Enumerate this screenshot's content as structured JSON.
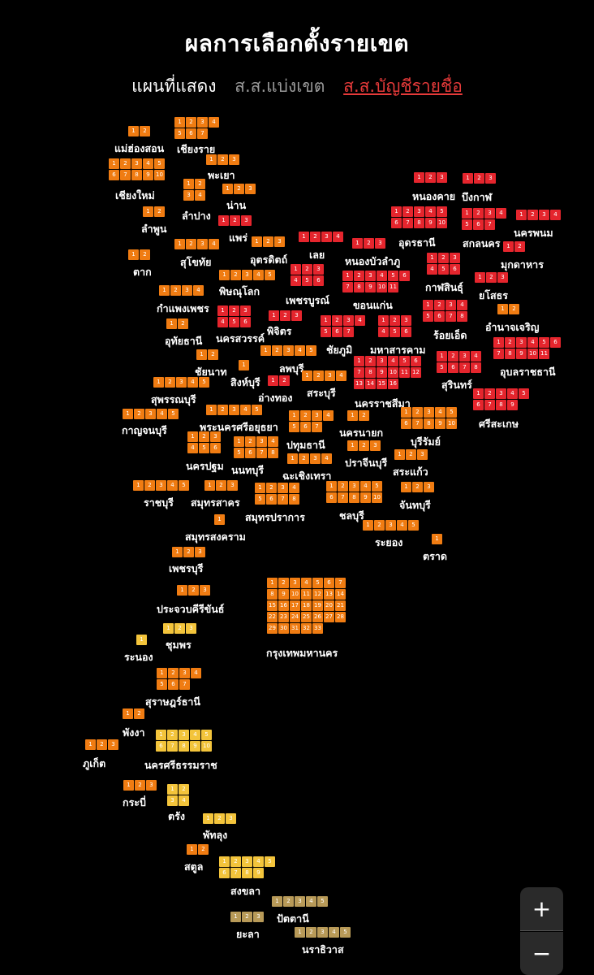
{
  "title": "ผลการเลือกตั้งรายเขต",
  "legend": {
    "show": "แผนที่แสดง",
    "district": "ส.ส.แบ่งเขต",
    "party_list": "ส.ส.บัญชีรายชื่อ"
  },
  "zoom": {
    "in": "+",
    "out": "−"
  },
  "colors": {
    "red": "#e5252d",
    "orange": "#f07c12",
    "yellow": "#f3c43b",
    "gold": "#b89a58"
  },
  "provinces": [
    {
      "name": "แม่ฮ่องสอน",
      "seats": 2,
      "cols": 2,
      "color": "orange",
      "pos": [
        158,
        155,
        141,
        173
      ]
    },
    {
      "name": "เชียงราย",
      "seats": 7,
      "cols": 4,
      "color": "orange",
      "pos": [
        215,
        144,
        218,
        174
      ]
    },
    {
      "name": "เชียงใหม่",
      "seats": 10,
      "cols": 5,
      "color": "orange",
      "pos": [
        134,
        195,
        142,
        231
      ]
    },
    {
      "name": "พะเยา",
      "seats": 3,
      "cols": 3,
      "color": "orange",
      "pos": [
        254,
        190,
        256,
        206
      ]
    },
    {
      "name": "ลำปาง",
      "seats": 4,
      "cols": 2,
      "color": "orange",
      "pos": [
        226,
        220,
        224,
        256
      ]
    },
    {
      "name": "น่าน",
      "seats": 3,
      "cols": 3,
      "color": "orange",
      "pos": [
        274,
        226,
        279,
        243
      ]
    },
    {
      "name": "ลำพูน",
      "seats": 2,
      "cols": 2,
      "color": "orange",
      "pos": [
        176,
        254,
        174,
        272
      ]
    },
    {
      "name": "แพร่",
      "seats": 3,
      "cols": 3,
      "color": "red",
      "pos": [
        269,
        265,
        282,
        283
      ]
    },
    {
      "name": "ตาก",
      "seats": 2,
      "cols": 2,
      "color": "orange",
      "pos": [
        158,
        307,
        164,
        325
      ]
    },
    {
      "name": "สุโขทัย",
      "seats": 4,
      "cols": 4,
      "color": "orange",
      "pos": [
        215,
        294,
        222,
        313
      ]
    },
    {
      "name": "อุตรดิตถ์",
      "seats": 3,
      "cols": 3,
      "color": "orange",
      "pos": [
        310,
        291,
        308,
        310
      ]
    },
    {
      "name": "เลย",
      "seats": 4,
      "cols": 4,
      "color": "red",
      "pos": [
        368,
        285,
        381,
        304
      ]
    },
    {
      "name": "หนองบัวลำภู",
      "seats": 3,
      "cols": 3,
      "color": "red",
      "pos": [
        434,
        293,
        425,
        312
      ]
    },
    {
      "name": "หนองคาย",
      "seats": 3,
      "cols": 3,
      "color": "red",
      "pos": [
        510,
        212,
        508,
        232
      ]
    },
    {
      "name": "บึงกาฬ",
      "seats": 3,
      "cols": 3,
      "color": "red",
      "pos": [
        570,
        213,
        569,
        233
      ]
    },
    {
      "name": "อุดรธานี",
      "seats": 10,
      "cols": 5,
      "color": "red",
      "pos": [
        482,
        254,
        491,
        289
      ]
    },
    {
      "name": "สกลนคร",
      "seats": 7,
      "cols": 4,
      "color": "red",
      "pos": [
        569,
        256,
        570,
        290
      ]
    },
    {
      "name": "นครพนม",
      "seats": 4,
      "cols": 4,
      "color": "red",
      "pos": [
        636,
        258,
        633,
        277
      ]
    },
    {
      "name": "มุกดาหาร",
      "seats": 2,
      "cols": 2,
      "color": "red",
      "pos": [
        620,
        297,
        617,
        316
      ]
    },
    {
      "name": "พิษณุโลก",
      "seats": 5,
      "cols": 5,
      "color": "orange",
      "pos": [
        270,
        332,
        270,
        349
      ]
    },
    {
      "name": "เพชรบูรณ์",
      "seats": 6,
      "cols": 3,
      "color": "red",
      "pos": [
        358,
        325,
        352,
        360
      ]
    },
    {
      "name": "ขอนแก่น",
      "seats": 11,
      "cols": 6,
      "color": "red",
      "pos": [
        422,
        333,
        435,
        366
      ]
    },
    {
      "name": "กาฬสินธุ์",
      "seats": 6,
      "cols": 3,
      "color": "red",
      "pos": [
        526,
        311,
        524,
        344
      ]
    },
    {
      "name": "ยโสธร",
      "seats": 3,
      "cols": 3,
      "color": "red",
      "pos": [
        585,
        335,
        590,
        354
      ]
    },
    {
      "name": "กำแพงเพชร",
      "seats": 4,
      "cols": 4,
      "color": "orange",
      "pos": [
        196,
        351,
        193,
        370
      ]
    },
    {
      "name": "นครสวรรค์",
      "seats": 6,
      "cols": 3,
      "color": "red",
      "pos": [
        268,
        376,
        266,
        407
      ]
    },
    {
      "name": "พิจิตร",
      "seats": 3,
      "cols": 3,
      "color": "red",
      "pos": [
        331,
        382,
        329,
        398
      ]
    },
    {
      "name": "ชัยภูมิ",
      "seats": 7,
      "cols": 4,
      "color": "red",
      "pos": [
        395,
        388,
        402,
        421
      ]
    },
    {
      "name": "มหาสารคาม",
      "seats": 6,
      "cols": 3,
      "color": "red",
      "pos": [
        466,
        388,
        456,
        421
      ]
    },
    {
      "name": "ร้อยเอ็ด",
      "seats": 8,
      "cols": 4,
      "color": "red",
      "pos": [
        521,
        369,
        534,
        403
      ]
    },
    {
      "name": "อำนาจเจริญ",
      "seats": 2,
      "cols": 2,
      "color": "orange",
      "pos": [
        613,
        374,
        598,
        393
      ]
    },
    {
      "name": "อุทัยธานี",
      "seats": 2,
      "cols": 2,
      "color": "orange",
      "pos": [
        205,
        392,
        203,
        410
      ]
    },
    {
      "name": "ชัยนาท",
      "seats": 2,
      "cols": 2,
      "color": "orange",
      "pos": [
        242,
        430,
        240,
        448
      ]
    },
    {
      "name": "ลพบุรี",
      "seats": 5,
      "cols": 5,
      "color": "orange",
      "pos": [
        321,
        425,
        344,
        444
      ]
    },
    {
      "name": "สิงห์บุรี",
      "seats": 1,
      "cols": 1,
      "color": "orange",
      "pos": [
        294,
        443,
        284,
        461
      ]
    },
    {
      "name": "นครราชสีมา",
      "seats": 16,
      "cols": 6,
      "color": "red",
      "pos": [
        436,
        438,
        437,
        487
      ]
    },
    {
      "name": "สุรินทร์",
      "seats": 8,
      "cols": 4,
      "color": "red",
      "pos": [
        538,
        432,
        544,
        464
      ]
    },
    {
      "name": "อุบลราชธานี",
      "seats": 11,
      "cols": 6,
      "color": "red",
      "pos": [
        608,
        415,
        616,
        448
      ]
    },
    {
      "name": "สุพรรณบุรี",
      "seats": 5,
      "cols": 5,
      "color": "orange",
      "pos": [
        189,
        464,
        186,
        482
      ]
    },
    {
      "name": "อ่างทอง",
      "seats": 2,
      "cols": 2,
      "color": "red",
      "pos": [
        330,
        462,
        318,
        480
      ]
    },
    {
      "name": "สระบุรี",
      "seats": 4,
      "cols": 4,
      "color": "orange",
      "pos": [
        372,
        456,
        378,
        474
      ]
    },
    {
      "name": "ศรีสะเกษ",
      "seats": 9,
      "cols": 5,
      "color": "red",
      "pos": [
        583,
        478,
        590,
        512
      ]
    },
    {
      "name": "กาญจนบุรี",
      "seats": 5,
      "cols": 5,
      "color": "orange",
      "pos": [
        151,
        503,
        150,
        520
      ]
    },
    {
      "name": "พระนครศรีอยุธยา",
      "seats": 5,
      "cols": 5,
      "color": "orange",
      "pos": [
        254,
        498,
        246,
        516
      ]
    },
    {
      "name": "ปทุมธานี",
      "seats": 7,
      "cols": 4,
      "color": "orange",
      "pos": [
        356,
        505,
        353,
        538
      ]
    },
    {
      "name": "นครนายก",
      "seats": 2,
      "cols": 2,
      "color": "orange",
      "pos": [
        428,
        505,
        418,
        523
      ]
    },
    {
      "name": "บุรีรัมย์",
      "seats": 10,
      "cols": 5,
      "color": "orange",
      "pos": [
        494,
        501,
        506,
        534
      ]
    },
    {
      "name": "นครปฐม",
      "seats": 6,
      "cols": 3,
      "color": "orange",
      "pos": [
        231,
        531,
        229,
        564
      ]
    },
    {
      "name": "นนทบุรี",
      "seats": 8,
      "cols": 4,
      "color": "orange",
      "pos": [
        288,
        537,
        285,
        569
      ]
    },
    {
      "name": "ฉะเชิงเทรา",
      "seats": 4,
      "cols": 4,
      "color": "orange",
      "pos": [
        354,
        558,
        348,
        576
      ]
    },
    {
      "name": "ปราจีนบุรี",
      "seats": 3,
      "cols": 3,
      "color": "orange",
      "pos": [
        428,
        542,
        425,
        560
      ]
    },
    {
      "name": "สระแก้ว",
      "seats": 3,
      "cols": 3,
      "color": "orange",
      "pos": [
        486,
        553,
        484,
        571
      ]
    },
    {
      "name": "ราชบุรี",
      "seats": 5,
      "cols": 5,
      "color": "orange",
      "pos": [
        164,
        591,
        177,
        609
      ]
    },
    {
      "name": "สมุทรสาคร",
      "seats": 3,
      "cols": 3,
      "color": "orange",
      "pos": [
        252,
        591,
        235,
        609
      ]
    },
    {
      "name": "สมุทรปราการ",
      "seats": 8,
      "cols": 4,
      "color": "orange",
      "pos": [
        314,
        594,
        302,
        627
      ]
    },
    {
      "name": "ชลบุรี",
      "seats": 10,
      "cols": 5,
      "color": "orange",
      "pos": [
        402,
        592,
        418,
        625
      ]
    },
    {
      "name": "จันทบุรี",
      "seats": 3,
      "cols": 3,
      "color": "orange",
      "pos": [
        494,
        593,
        492,
        612
      ]
    },
    {
      "name": "สมุทรสงคราม",
      "seats": 1,
      "cols": 1,
      "color": "orange",
      "pos": [
        264,
        633,
        228,
        651
      ]
    },
    {
      "name": "ระยอง",
      "seats": 5,
      "cols": 5,
      "color": "orange",
      "pos": [
        447,
        640,
        462,
        658
      ]
    },
    {
      "name": "ตราด",
      "seats": 1,
      "cols": 1,
      "color": "orange",
      "pos": [
        532,
        657,
        521,
        675
      ]
    },
    {
      "name": "เพชรบุรี",
      "seats": 3,
      "cols": 3,
      "color": "orange",
      "pos": [
        212,
        673,
        208,
        690
      ]
    },
    {
      "name": "กรุงเทพมหานคร",
      "seats": 33,
      "cols": 7,
      "color": "orange",
      "pos": [
        329,
        711,
        328,
        794
      ]
    },
    {
      "name": "ประจวบคีรีขันธ์",
      "seats": 3,
      "cols": 3,
      "color": "orange",
      "pos": [
        218,
        720,
        193,
        740
      ]
    },
    {
      "name": "ระนอง",
      "seats": 1,
      "cols": 1,
      "color": "yellow",
      "pos": [
        168,
        781,
        153,
        799
      ]
    },
    {
      "name": "ชุมพร",
      "seats": 3,
      "cols": 3,
      "color": "yellow",
      "pos": [
        201,
        767,
        204,
        784
      ]
    },
    {
      "name": "สุราษฎร์ธานี",
      "seats": 7,
      "cols": 4,
      "color": "orange",
      "pos": [
        193,
        822,
        179,
        854
      ]
    },
    {
      "name": "พังงา",
      "seats": 2,
      "cols": 2,
      "color": "orange",
      "pos": [
        151,
        872,
        151,
        892
      ]
    },
    {
      "name": "ภูเก็ต",
      "seats": 3,
      "cols": 3,
      "color": "orange",
      "pos": [
        105,
        910,
        102,
        930
      ]
    },
    {
      "name": "นครศรีธรรมราช",
      "seats": 10,
      "cols": 5,
      "color": "yellow",
      "pos": [
        192,
        898,
        178,
        932
      ]
    },
    {
      "name": "กระบี่",
      "seats": 3,
      "cols": 3,
      "color": "orange",
      "pos": [
        152,
        960,
        151,
        978
      ]
    },
    {
      "name": "ตรัง",
      "seats": 4,
      "cols": 2,
      "color": "yellow",
      "pos": [
        206,
        965,
        207,
        995
      ]
    },
    {
      "name": "พัทลุง",
      "seats": 3,
      "cols": 3,
      "color": "yellow",
      "pos": [
        250,
        1001,
        250,
        1018
      ]
    },
    {
      "name": "สตูล",
      "seats": 2,
      "cols": 2,
      "color": "orange",
      "pos": [
        230,
        1039,
        227,
        1057
      ]
    },
    {
      "name": "สงขลา",
      "seats": 9,
      "cols": 5,
      "color": "yellow",
      "pos": [
        270,
        1054,
        284,
        1087
      ]
    },
    {
      "name": "ปัตตานี",
      "seats": 5,
      "cols": 5,
      "color": "gold",
      "pos": [
        335,
        1103,
        341,
        1121
      ]
    },
    {
      "name": "ยะลา",
      "seats": 3,
      "cols": 3,
      "color": "gold",
      "pos": [
        284,
        1122,
        291,
        1140
      ]
    },
    {
      "name": "นราธิวาส",
      "seats": 5,
      "cols": 5,
      "color": "gold",
      "pos": [
        363,
        1141,
        372,
        1159
      ]
    }
  ]
}
